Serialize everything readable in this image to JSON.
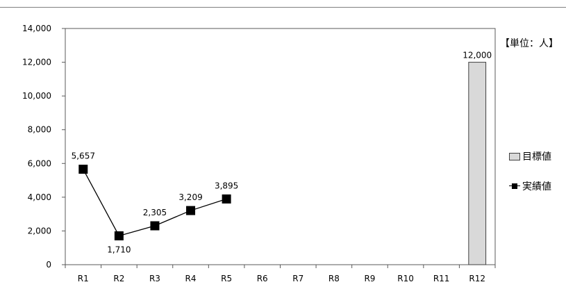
{
  "chart_data": {
    "type": "bar",
    "categories": [
      "R1",
      "R2",
      "R3",
      "R4",
      "R5",
      "R6",
      "R7",
      "R8",
      "R9",
      "R10",
      "R11",
      "R12"
    ],
    "ylim": [
      0,
      14000
    ],
    "yticks": [
      0,
      2000,
      4000,
      6000,
      8000,
      10000,
      12000,
      14000
    ],
    "ytick_labels": [
      "0",
      "2,000",
      "4,000",
      "6,000",
      "8,000",
      "10,000",
      "12,000",
      "14,000"
    ],
    "unit_label": "【単位：人】",
    "legend_position": "right",
    "grid": false,
    "series": [
      {
        "name": "目標値",
        "type": "bar",
        "color": "#d9d9d9",
        "values": [
          null,
          null,
          null,
          null,
          null,
          null,
          null,
          null,
          null,
          null,
          null,
          12000
        ],
        "labels": [
          null,
          null,
          null,
          null,
          null,
          null,
          null,
          null,
          null,
          null,
          null,
          "12,000"
        ]
      },
      {
        "name": "実績値",
        "type": "line",
        "color": "#000000",
        "values": [
          5657,
          1710,
          2305,
          3209,
          3895,
          null,
          null,
          null,
          null,
          null,
          null,
          null
        ],
        "labels": [
          "5,657",
          "1,710",
          "2,305",
          "3,209",
          "3,895",
          null,
          null,
          null,
          null,
          null,
          null,
          null
        ]
      }
    ]
  }
}
